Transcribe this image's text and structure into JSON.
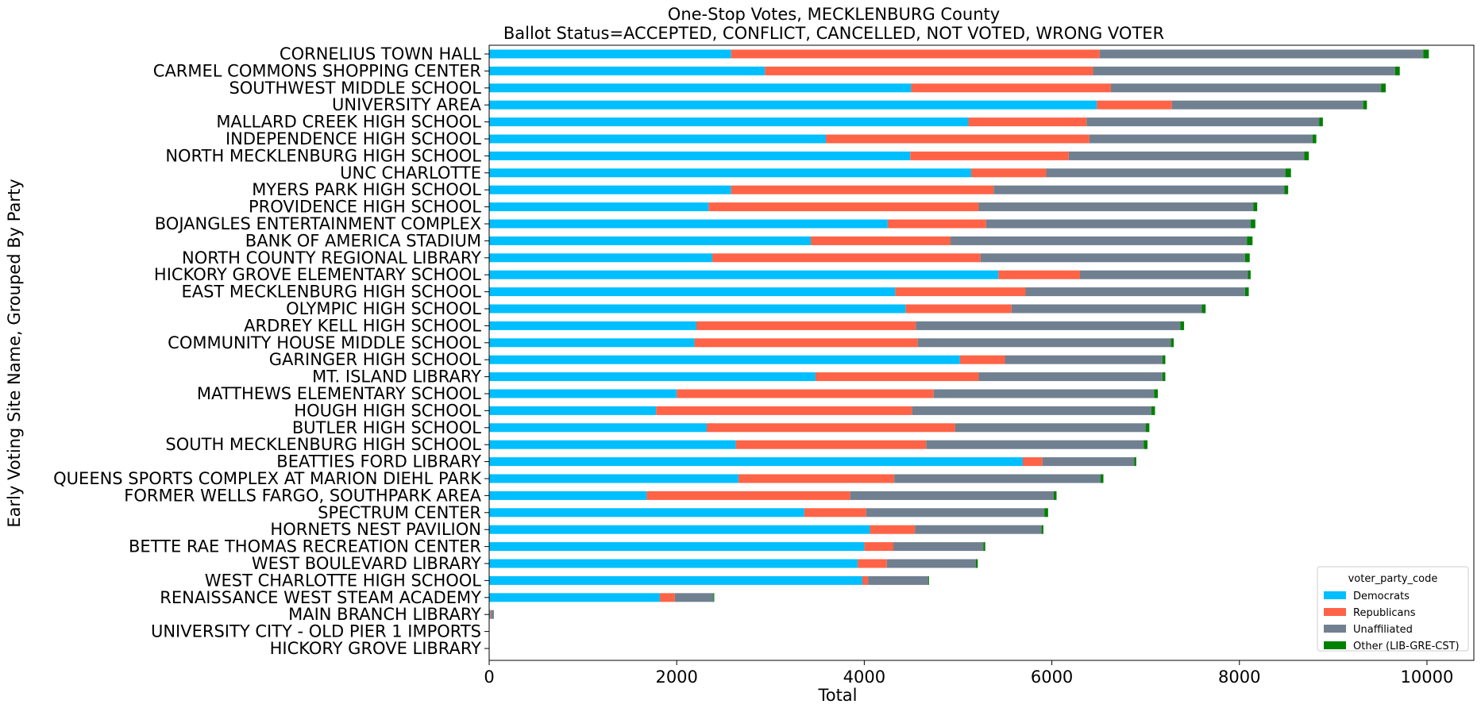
{
  "chart_data": {
    "type": "bar",
    "orientation": "horizontal",
    "stacked": true,
    "title": "One-Stop Votes, MECKLENBURG County",
    "subtitle": "Ballot Status=ACCEPTED, CONFLICT, CANCELLED, NOT VOTED, WRONG VOTER",
    "xlabel": "Total",
    "ylabel": "Early Voting Site Name, Grouped By Party",
    "xlim": [
      0,
      10500
    ],
    "xticks": [
      0,
      2000,
      4000,
      6000,
      8000,
      10000
    ],
    "grid": false,
    "legend_title": "voter_party_code",
    "legend_position": "lower-right",
    "categories": [
      "CORNELIUS TOWN HALL",
      "CARMEL COMMONS SHOPPING CENTER",
      "SOUTHWEST MIDDLE SCHOOL",
      "UNIVERSITY AREA",
      "MALLARD CREEK HIGH SCHOOL",
      "INDEPENDENCE HIGH SCHOOL",
      "NORTH MECKLENBURG HIGH SCHOOL",
      "UNC CHARLOTTE",
      "MYERS PARK HIGH SCHOOL",
      "PROVIDENCE HIGH SCHOOL",
      "BOJANGLES ENTERTAINMENT COMPLEX",
      "BANK OF AMERICA STADIUM",
      "NORTH COUNTY REGIONAL LIBRARY",
      "HICKORY GROVE ELEMENTARY SCHOOL",
      "EAST MECKLENBURG HIGH SCHOOL",
      "OLYMPIC HIGH SCHOOL",
      "ARDREY KELL HIGH SCHOOL",
      "COMMUNITY HOUSE MIDDLE SCHOOL",
      "GARINGER HIGH SCHOOL",
      "MT. ISLAND LIBRARY",
      "MATTHEWS ELEMENTARY SCHOOL",
      "HOUGH HIGH SCHOOL",
      "BUTLER HIGH SCHOOL",
      "SOUTH MECKLENBURG HIGH SCHOOL",
      "BEATTIES FORD LIBRARY",
      "QUEENS SPORTS COMPLEX AT MARION DIEHL PARK",
      "FORMER WELLS FARGO, SOUTHPARK AREA",
      "SPECTRUM CENTER",
      "HORNETS NEST PAVILION",
      "BETTE RAE THOMAS RECREATION CENTER",
      "WEST BOULEVARD LIBRARY",
      "WEST CHARLOTTE HIGH SCHOOL",
      "RENAISSANCE WEST STEAM ACADEMY",
      "MAIN BRANCH LIBRARY",
      "UNIVERSITY CITY - OLD PIER 1 IMPORTS",
      "HICKORY GROVE LIBRARY"
    ],
    "series": [
      {
        "name": "Democrats",
        "color": "#00bfff",
        "values": [
          2580,
          2940,
          4500,
          6480,
          5110,
          3590,
          4490,
          5140,
          2580,
          2340,
          4250,
          3430,
          2380,
          5430,
          4330,
          4440,
          2210,
          2190,
          5020,
          3480,
          2000,
          1780,
          2320,
          2630,
          5690,
          2660,
          1680,
          3360,
          4060,
          4000,
          3930,
          3980,
          1820,
          10,
          0,
          0
        ]
      },
      {
        "name": "Republicans",
        "color": "#ff6347",
        "values": [
          3930,
          3500,
          2130,
          800,
          1260,
          2810,
          1690,
          800,
          2800,
          2880,
          1050,
          1490,
          2860,
          870,
          1390,
          1130,
          2340,
          2380,
          480,
          1740,
          2740,
          2730,
          2650,
          2030,
          210,
          1660,
          2170,
          660,
          480,
          310,
          310,
          60,
          160,
          10,
          0,
          0
        ]
      },
      {
        "name": "Unaffiliated",
        "color": "#708090",
        "values": [
          3450,
          3220,
          2880,
          2040,
          2480,
          2380,
          2510,
          2550,
          3100,
          2930,
          2820,
          3160,
          2820,
          1790,
          2340,
          2030,
          2820,
          2700,
          1680,
          1960,
          2350,
          2550,
          2030,
          2320,
          980,
          2200,
          2170,
          1900,
          1350,
          960,
          950,
          640,
          410,
          30,
          0,
          0
        ]
      },
      {
        "name": "Other (LIB-GRE-CST)",
        "color": "#008000",
        "values": [
          60,
          50,
          50,
          40,
          40,
          40,
          50,
          60,
          40,
          40,
          50,
          60,
          50,
          30,
          40,
          40,
          40,
          30,
          30,
          30,
          40,
          40,
          40,
          40,
          20,
          30,
          30,
          40,
          20,
          20,
          20,
          10,
          10,
          0,
          0,
          0
        ]
      }
    ]
  }
}
